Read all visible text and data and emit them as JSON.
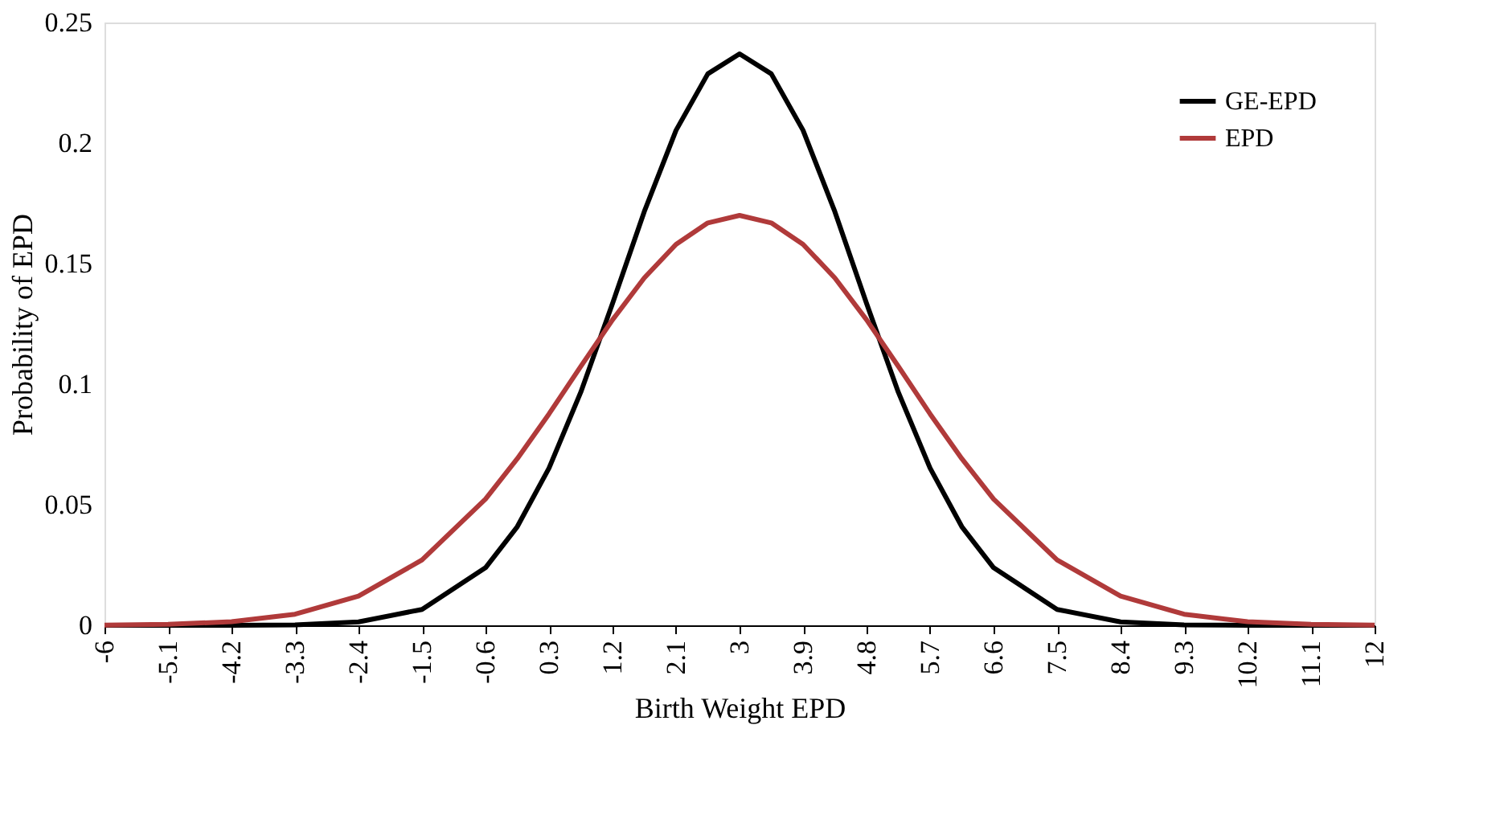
{
  "chart_data": {
    "type": "line",
    "xlabel": "Birth Weight EPD",
    "ylabel": "Probability of EPD",
    "x": [
      -6,
      -5.1,
      -4.2,
      -3.3,
      -2.4,
      -1.5,
      -0.6,
      -0.15,
      0.3,
      0.75,
      1.2,
      1.65,
      2.1,
      2.55,
      3,
      3.45,
      3.9,
      4.35,
      4.8,
      5.25,
      5.7,
      6.15,
      6.6,
      7.5,
      8.4,
      9.3,
      10.2,
      11.1,
      12
    ],
    "series": [
      {
        "name": "GE-EPD",
        "color": "#000000",
        "values": [
          0,
          0,
          0,
          0.0002,
          0.0014,
          0.0066,
          0.0239,
          0.0409,
          0.0652,
          0.0967,
          0.1335,
          0.1716,
          0.2053,
          0.2287,
          0.237,
          0.2287,
          0.2053,
          0.1716,
          0.1335,
          0.0967,
          0.0652,
          0.0409,
          0.0239,
          0.0066,
          0.0014,
          0.0002,
          0,
          0,
          0
        ]
      },
      {
        "name": "EPD",
        "color": "#b03a3a",
        "values": [
          0.0001,
          0.0004,
          0.0015,
          0.0046,
          0.0121,
          0.0271,
          0.0524,
          0.0691,
          0.0877,
          0.1074,
          0.1267,
          0.1441,
          0.158,
          0.1669,
          0.17,
          0.1669,
          0.158,
          0.1441,
          0.1267,
          0.1074,
          0.0877,
          0.0691,
          0.0524,
          0.0271,
          0.0121,
          0.0046,
          0.0015,
          0.0004,
          0.0001
        ]
      }
    ],
    "xlim": [
      -6,
      12
    ],
    "xticks": [
      -6,
      -5.1,
      -4.2,
      -3.3,
      -2.4,
      -1.5,
      -0.6,
      0.3,
      1.2,
      2.1,
      3,
      3.9,
      4.8,
      5.7,
      6.6,
      7.5,
      8.4,
      9.3,
      10.2,
      11.1,
      12
    ],
    "ylim": [
      0,
      0.25
    ],
    "yticks": [
      0,
      0.05,
      0.1,
      0.15,
      0.2,
      0.25
    ],
    "grid": false,
    "legend": "top right",
    "marker": "none",
    "line_style": "solid"
  }
}
